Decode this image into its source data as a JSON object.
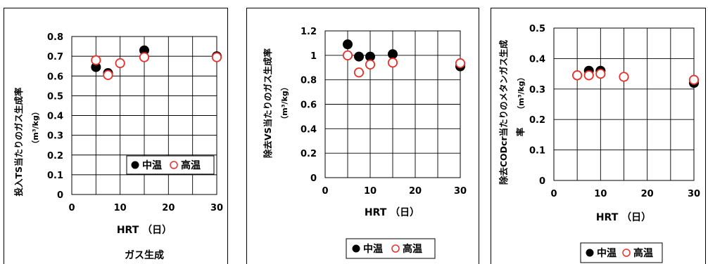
{
  "colors": {
    "mesophilic": "#000000",
    "thermophilic": "#e8302a"
  },
  "chart_data": [
    {
      "type": "scatter",
      "xlabel": "HRT （日）",
      "ylabel": "投入TS当たりのガス生成率",
      "yunit": "（m³/kg）",
      "xlim": [
        0,
        30
      ],
      "ylim": [
        0,
        0.8
      ],
      "xticks": [
        "0",
        "10",
        "20",
        "30"
      ],
      "yticks": [
        "0",
        "0.1",
        "0.2",
        "0.3",
        "0.4",
        "0.5",
        "0.6",
        "0.7",
        "0.8"
      ],
      "caption": "ガス生成",
      "legend": [
        "中温",
        "高温"
      ],
      "legend_position": "lower-right-inside",
      "grid": true,
      "series": [
        {
          "name": "中温",
          "color": "#000000",
          "marker": "filled",
          "x": [
            5,
            7.5,
            15,
            30
          ],
          "y": [
            0.645,
            0.615,
            0.73,
            0.7
          ]
        },
        {
          "name": "高温",
          "color": "#e8302a",
          "marker": "open",
          "x": [
            5,
            7.5,
            10,
            15,
            30
          ],
          "y": [
            0.68,
            0.605,
            0.665,
            0.695,
            0.695
          ]
        }
      ]
    },
    {
      "type": "scatter",
      "xlabel": "HRT （日）",
      "ylabel": "除去VS当たりのガス生成率",
      "yunit": "（m³/kg）",
      "xlim": [
        0,
        30
      ],
      "ylim": [
        0,
        1.2
      ],
      "xticks": [
        "0",
        "10",
        "20",
        "30"
      ],
      "yticks": [
        "0",
        "0.2",
        "0.4",
        "0.6",
        "0.8",
        "1",
        "1.2"
      ],
      "legend": [
        "中温",
        "高温"
      ],
      "legend_position": "bottom",
      "grid": true,
      "series": [
        {
          "name": "中温",
          "color": "#000000",
          "marker": "filled",
          "x": [
            5,
            7.5,
            10,
            15,
            30
          ],
          "y": [
            1.09,
            0.99,
            0.99,
            1.01,
            0.91
          ]
        },
        {
          "name": "高温",
          "color": "#e8302a",
          "marker": "open",
          "x": [
            5,
            7.5,
            10,
            15,
            30
          ],
          "y": [
            1.0,
            0.86,
            0.925,
            0.94,
            0.935
          ]
        }
      ]
    },
    {
      "type": "scatter",
      "xlabel": "HRT （日）",
      "ylabel": "除去CODcr当たりのメタンガス生成",
      "ylabel2": "率",
      "yunit": "（m³/kg）",
      "xlim": [
        0,
        30
      ],
      "ylim": [
        0,
        0.5
      ],
      "xticks": [
        "0",
        "10",
        "20",
        "30"
      ],
      "yticks": [
        "0",
        "0.1",
        "0.2",
        "0.3",
        "0.4",
        "0.5"
      ],
      "legend": [
        "中温",
        "高温"
      ],
      "legend_position": "bottom",
      "grid": true,
      "series": [
        {
          "name": "中温",
          "color": "#000000",
          "marker": "filled",
          "x": [
            5,
            7.5,
            10,
            30
          ],
          "y": [
            0.345,
            0.36,
            0.36,
            0.32
          ]
        },
        {
          "name": "高温",
          "color": "#e8302a",
          "marker": "open",
          "x": [
            5,
            7.5,
            10,
            15,
            30
          ],
          "y": [
            0.345,
            0.345,
            0.35,
            0.34,
            0.33
          ]
        }
      ]
    }
  ]
}
